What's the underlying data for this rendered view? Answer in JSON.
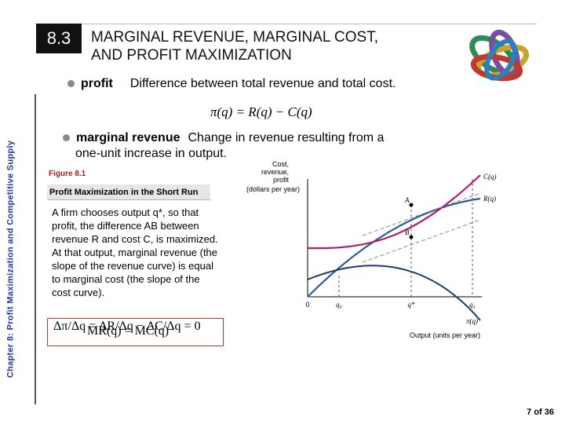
{
  "side_label": "Chapter 8:  Profit Maximization and Competitive Supply",
  "section_number": "8.3",
  "title_line1": "MARGINAL REVENUE, MARGINAL COST,",
  "title_line2": "AND PROFIT MAXIMIZATION",
  "profit_term": "profit",
  "profit_definition": "Difference between total revenue and total cost.",
  "profit_formula": "π(q) = R(q) − C(q)",
  "mr_term": "marginal revenue",
  "mr_definition_line1": "Change in revenue resulting from a",
  "mr_definition_line2": "one-unit increase in output.",
  "figure_label": "Figure 8.1",
  "figure_title": "Profit Maximization in the Short Run",
  "caption_p1": "A firm chooses output q*, so that profit, the difference AB between revenue R and cost C, is maximized.",
  "caption_p2": "At that output, marginal revenue (the slope of the revenue curve) is equal to marginal cost (the slope of the cost curve).",
  "equation_marginal": "Δπ/Δq = ΔR/Δq − ΔC/Δq = 0",
  "equation_condition": "MR(q) = MC(q)",
  "page_number": "7 of 36",
  "colors": {
    "cost": "#b11e63",
    "revenue": "#2a5c9c",
    "profit": "#1a3a6a",
    "tangent": "#888888",
    "accent": "#a51c1c"
  },
  "chart_data": {
    "type": "line",
    "ylabel_line1": "Cost,",
    "ylabel_line2": "revenue,",
    "ylabel_line3": "profit",
    "ylabel_line4": "(dollars per year)",
    "xlabel": "Output (units per year)",
    "origin_label": "0",
    "x_ticks": [
      "q₀",
      "q*",
      "q₁"
    ],
    "series": [
      {
        "name": "C(q)"
      },
      {
        "name": "R(q)"
      },
      {
        "name": "π(q)"
      }
    ],
    "point_labels": [
      "A",
      "B"
    ]
  },
  "logo": "knotted-rings-logo"
}
